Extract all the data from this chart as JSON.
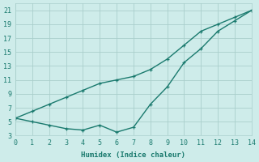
{
  "xlabel": "Humidex (Indice chaleur)",
  "background_color": "#ceecea",
  "grid_color": "#aacfcc",
  "line_color": "#1a7a6e",
  "x_line1": [
    0,
    1,
    2,
    3,
    4,
    5,
    6,
    7,
    8,
    9,
    10,
    11,
    12,
    13,
    14
  ],
  "y_line1": [
    5.5,
    5.0,
    4.5,
    4.0,
    3.8,
    4.5,
    3.5,
    4.2,
    7.5,
    10.0,
    13.5,
    15.5,
    18.0,
    19.5,
    21.0
  ],
  "x_line2": [
    0,
    1,
    2,
    3,
    4,
    5,
    6,
    7,
    8,
    9,
    10,
    11,
    12,
    13,
    14
  ],
  "y_line2": [
    5.5,
    6.5,
    7.5,
    8.5,
    9.5,
    10.5,
    11.0,
    11.5,
    12.5,
    14.0,
    16.0,
    18.0,
    19.0,
    20.0,
    21.0
  ],
  "xlim": [
    0,
    14
  ],
  "ylim": [
    3,
    22
  ],
  "xticks": [
    0,
    1,
    2,
    3,
    4,
    5,
    6,
    7,
    8,
    9,
    10,
    11,
    12,
    13,
    14
  ],
  "yticks": [
    3,
    5,
    7,
    9,
    11,
    13,
    15,
    17,
    19,
    21
  ],
  "marker_size": 3,
  "linewidth": 1.0
}
